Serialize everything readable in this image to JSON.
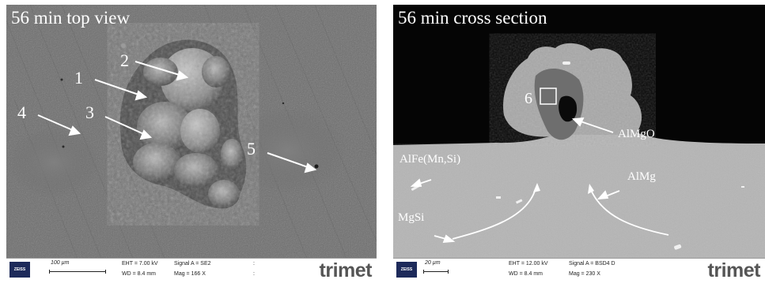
{
  "left_panel": {
    "title": "56 min top view",
    "labels": [
      "1",
      "2",
      "3",
      "4",
      "5"
    ],
    "info_bar": {
      "scale": "100 µm",
      "eht": "EHT = 7.00 kV",
      "wd": "WD = 8.4 mm",
      "signal": "Signal A = SE2",
      "mag": "Mag =   166 X",
      "brand": "trimet",
      "logo": "ZEISS"
    }
  },
  "right_panel": {
    "title": "56 min cross section",
    "labels": {
      "region": "6",
      "almgo": "AlMgO",
      "alfe": "AlFe(Mn,Si)",
      "almg": "AlMg",
      "mgsi": "MgSi"
    },
    "info_bar": {
      "scale": "20 µm",
      "eht": "EHT = 12.00 kV",
      "wd": "WD = 8.4 mm",
      "signal": "Signal A = BSD4 D",
      "mag": "Mag =   230 X",
      "brand": "trimet",
      "logo": "ZEISS"
    }
  }
}
